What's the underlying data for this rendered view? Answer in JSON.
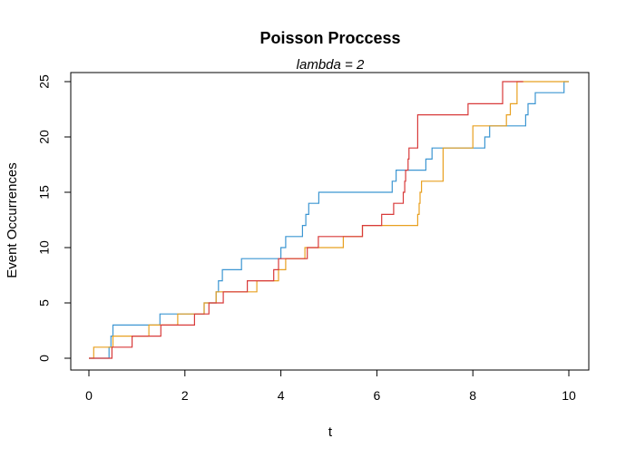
{
  "chart_data": {
    "type": "line",
    "step": true,
    "title": "Poisson Proccess",
    "subtitle": "lambda = 2",
    "xlabel": "t",
    "ylabel": "Event Occurrences",
    "xlim": [
      0,
      10
    ],
    "ylim": [
      0,
      25
    ],
    "xticks": [
      0,
      2,
      4,
      6,
      8,
      10
    ],
    "yticks": [
      0,
      5,
      10,
      15,
      20,
      25
    ],
    "grid": false,
    "series": [
      {
        "color": "#3C96D2",
        "x": [
          0.0,
          0.42,
          0.46,
          0.5,
          1.48,
          2.4,
          2.65,
          2.7,
          2.78,
          3.18,
          3.78,
          3.85,
          3.95,
          4.0,
          4.1,
          4.45,
          4.52,
          4.58,
          4.65,
          4.7,
          4.79,
          6.25,
          6.32,
          6.4,
          6.95,
          7.02,
          7.05,
          7.15,
          7.35,
          8.25,
          8.35,
          9.1,
          9.15,
          9.22,
          9.3,
          9.45,
          9.9,
          10.0
        ],
        "y": [
          0,
          1,
          2,
          3,
          4,
          5,
          6,
          7,
          8,
          9,
          9,
          9,
          9,
          10,
          11,
          12,
          13,
          14,
          14,
          14,
          15,
          15,
          16,
          17,
          17,
          18,
          18,
          19,
          19,
          20,
          21,
          22,
          23,
          23,
          24,
          24,
          25,
          25
        ]
      },
      {
        "color": "#E8A020",
        "x": [
          0.0,
          0.1,
          0.5,
          1.25,
          1.85,
          2.4,
          2.65,
          3.5,
          3.95,
          4.1,
          4.5,
          5.3,
          5.7,
          6.85,
          6.88,
          6.9,
          6.93,
          7.38,
          8.0,
          8.7,
          8.78,
          8.92,
          10.0
        ],
        "y": [
          0,
          1,
          2,
          3,
          4,
          5,
          6,
          7,
          8,
          9,
          10,
          11,
          12,
          13,
          14,
          15,
          16,
          19,
          21,
          22,
          23,
          25,
          25
        ]
      },
      {
        "color": "#D83A3A",
        "x": [
          0.0,
          0.48,
          0.9,
          1.5,
          2.2,
          2.5,
          2.68,
          2.8,
          3.3,
          3.85,
          3.95,
          4.55,
          4.78,
          5.7,
          6.1,
          6.35,
          6.55,
          6.58,
          6.6,
          6.65,
          6.67,
          6.85,
          7.9,
          8.62,
          8.85,
          9.05
        ],
        "y": [
          0,
          1,
          2,
          3,
          4,
          5,
          5,
          6,
          7,
          8,
          9,
          10,
          11,
          12,
          13,
          14,
          15,
          16,
          17,
          18,
          19,
          22,
          23,
          25,
          25,
          25
        ]
      }
    ]
  }
}
